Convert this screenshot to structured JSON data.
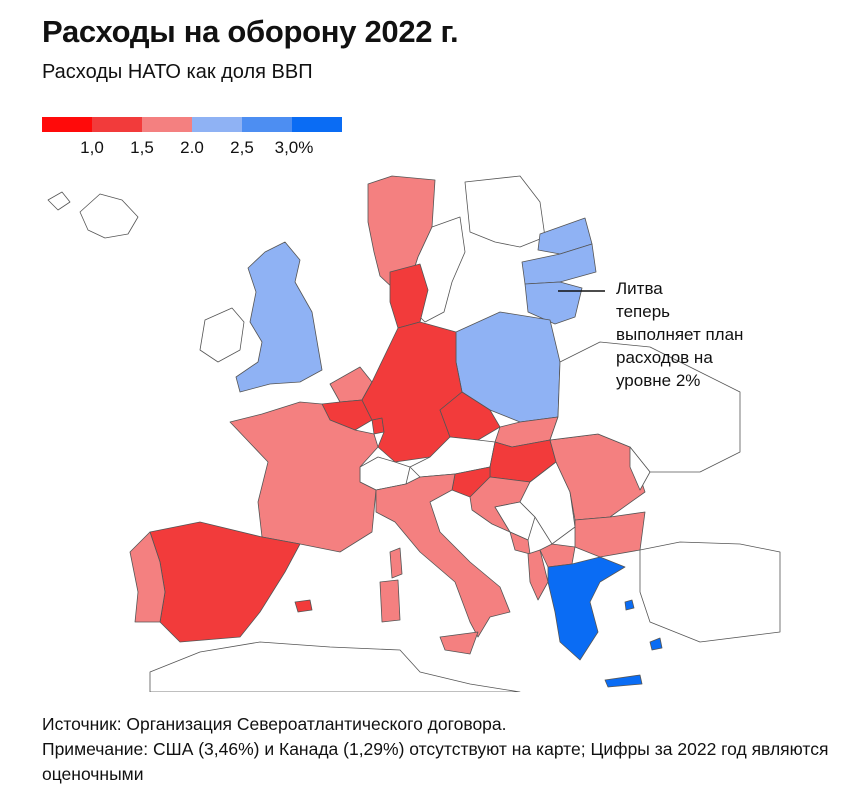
{
  "title": "Расходы на оборону 2022 г.",
  "subtitle": "Расходы НАТО как доля ВВП",
  "legend": {
    "colors": [
      "#ff0a0a",
      "#f23b3b",
      "#f48080",
      "#8fb2f4",
      "#4d8ef2",
      "#0a6cf4"
    ],
    "labels": [
      "1,0",
      "1,5",
      "2.0",
      "2,5",
      "3,0%"
    ]
  },
  "annotation": {
    "lines": [
      "Литва",
      "теперь",
      "выполняет план",
      "расходов на",
      "уровне 2%"
    ]
  },
  "footer": {
    "source": "Источник: Организация Североатлантического договора.",
    "note": "Примечание: США (3,46%) и Канада (1,29%) отсутствуют на карте; Цифры за 2022 год являются оценочными"
  },
  "map_colors": {
    "red": "#f23b3b",
    "light_red": "#f48080",
    "light_blue": "#8fb2f4",
    "blue": "#0a6cf4",
    "non_nato": "#ffffff",
    "border": "#555555"
  },
  "countries": [
    {
      "name": "Norway",
      "color": "light_red"
    },
    {
      "name": "Estonia",
      "color": "light_blue"
    },
    {
      "name": "Latvia",
      "color": "light_blue"
    },
    {
      "name": "Lithuania",
      "color": "light_blue"
    },
    {
      "name": "United Kingdom",
      "color": "light_blue"
    },
    {
      "name": "Poland",
      "color": "light_blue"
    },
    {
      "name": "Denmark",
      "color": "red"
    },
    {
      "name": "Netherlands",
      "color": "light_red"
    },
    {
      "name": "Belgium",
      "color": "red"
    },
    {
      "name": "Luxembourg",
      "color": "red"
    },
    {
      "name": "Germany",
      "color": "red"
    },
    {
      "name": "Czechia",
      "color": "red"
    },
    {
      "name": "Slovakia",
      "color": "light_red"
    },
    {
      "name": "Hungary",
      "color": "red"
    },
    {
      "name": "Slovenia",
      "color": "red"
    },
    {
      "name": "Croatia",
      "color": "light_red"
    },
    {
      "name": "Montenegro",
      "color": "light_red"
    },
    {
      "name": "North Macedonia",
      "color": "light_red"
    },
    {
      "name": "Albania",
      "color": "light_red"
    },
    {
      "name": "Romania",
      "color": "light_red"
    },
    {
      "name": "Bulgaria",
      "color": "light_red"
    },
    {
      "name": "France",
      "color": "light_red"
    },
    {
      "name": "Spain",
      "color": "red"
    },
    {
      "name": "Portugal",
      "color": "light_red"
    },
    {
      "name": "Italy",
      "color": "light_red"
    },
    {
      "name": "Greece",
      "color": "blue"
    },
    {
      "name": "Austria",
      "color": "non_nato"
    },
    {
      "name": "Switzerland",
      "color": "non_nato"
    },
    {
      "name": "Serbia",
      "color": "non_nato"
    },
    {
      "name": "Bosnia and Herzegovina",
      "color": "non_nato"
    },
    {
      "name": "Ireland",
      "color": "non_nato"
    },
    {
      "name": "Sweden",
      "color": "non_nato"
    },
    {
      "name": "Finland",
      "color": "non_nato"
    }
  ]
}
